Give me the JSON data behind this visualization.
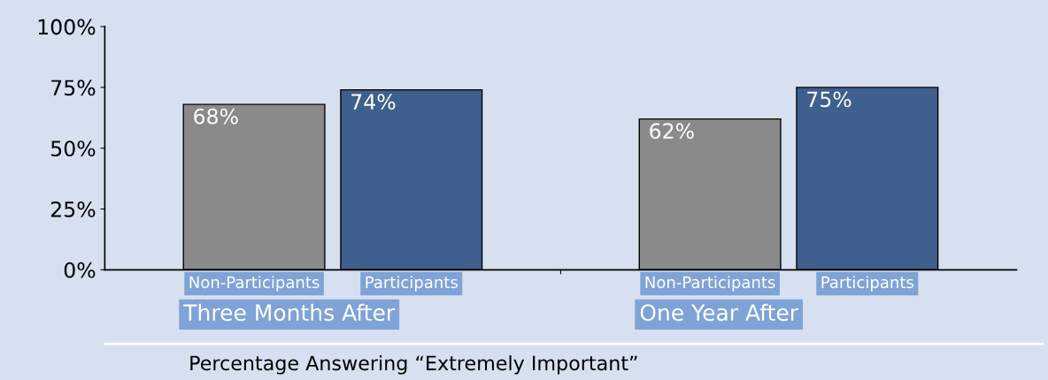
{
  "chart_data": {
    "type": "bar",
    "xlabel": "Percentage Answering “Extremely Important”",
    "categories": [
      "Three Months After",
      "One Year After"
    ],
    "series": [
      {
        "name": "Non-Participants",
        "color": "#8a8a8a",
        "values": [
          68,
          62
        ],
        "value_labels": [
          "68%",
          "62%"
        ]
      },
      {
        "name": "Participants",
        "color": "#3f5f8c",
        "values": [
          74,
          75
        ],
        "value_labels": [
          "74%",
          "75%"
        ]
      }
    ],
    "ylim": [
      0,
      100
    ],
    "yticks": [
      {
        "value": 0,
        "label": "0%"
      },
      {
        "value": 25,
        "label": "25%"
      },
      {
        "value": 50,
        "label": "50%"
      },
      {
        "value": 75,
        "label": "75%"
      },
      {
        "value": 100,
        "label": "100%"
      }
    ],
    "grid": false,
    "legend": false
  }
}
